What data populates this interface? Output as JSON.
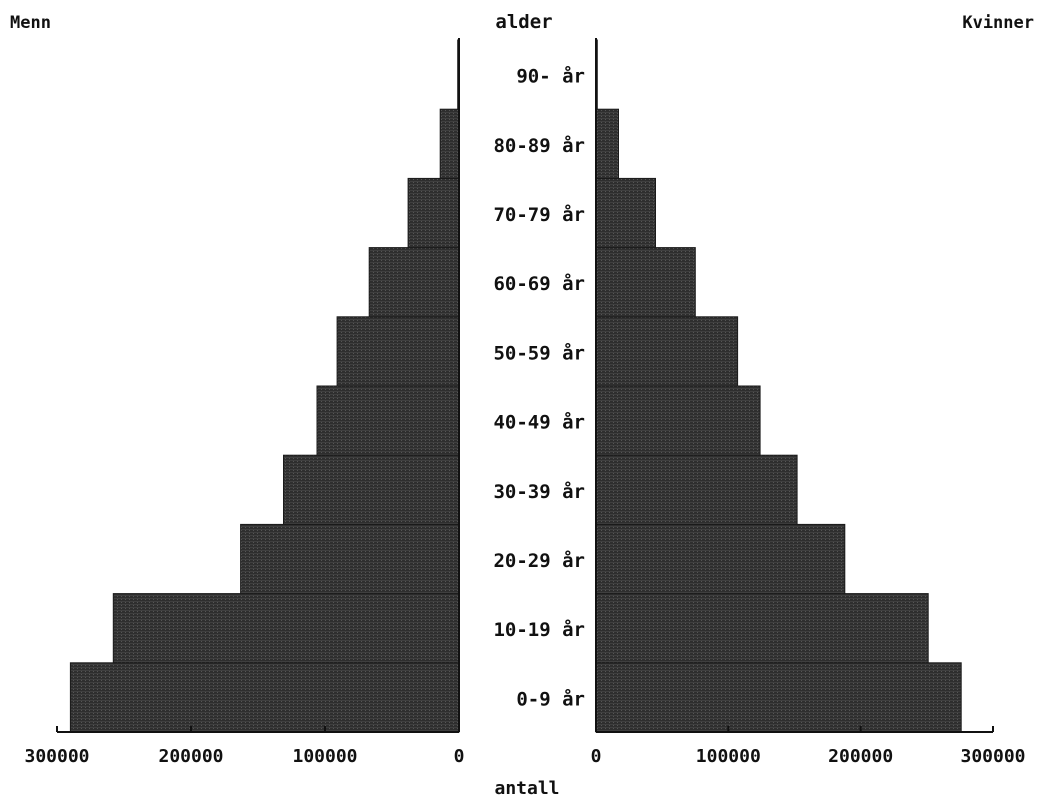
{
  "chart_data": {
    "type": "bar",
    "orientation": "horizontal",
    "layout": "population-pyramid",
    "left_label": "Menn",
    "right_label": "Kvinner",
    "center_axis_title": "alder",
    "xlabel": "antall",
    "xlim": [
      0,
      300000
    ],
    "categories": [
      "0-9 år",
      "10-19 år",
      "20-29 år",
      "30-39 år",
      "40-49 år",
      "50-59 år",
      "60-69 år",
      "70-79 år",
      "80-89 år",
      "90- år"
    ],
    "series": [
      {
        "name": "Menn",
        "side": "left",
        "values": [
          290000,
          258000,
          163000,
          131000,
          106000,
          91000,
          67000,
          38000,
          14000,
          1000
        ]
      },
      {
        "name": "Kvinner",
        "side": "right",
        "values": [
          276000,
          251000,
          188000,
          152000,
          124000,
          107000,
          75000,
          45000,
          17000,
          1000
        ]
      }
    ],
    "left_ticks": [
      "300000",
      "200000",
      "100000",
      "0"
    ],
    "right_ticks": [
      "0",
      "100000",
      "200000",
      "300000"
    ],
    "left_tick_values": [
      300000,
      200000,
      100000,
      0
    ],
    "right_tick_values": [
      0,
      100000,
      200000,
      300000
    ],
    "bar_color": "#2e2e2e",
    "grid": false
  }
}
